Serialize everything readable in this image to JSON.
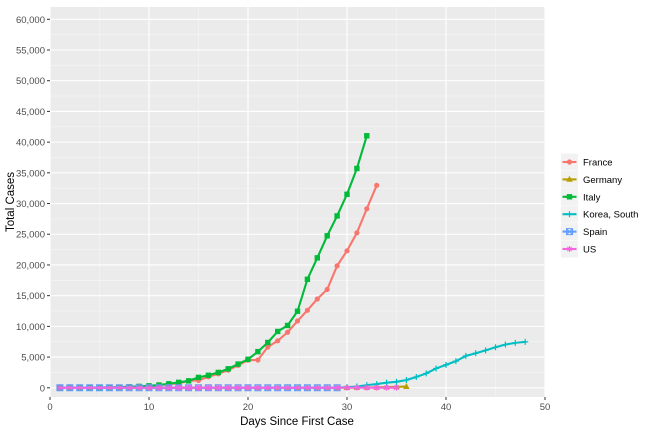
{
  "chart_data": {
    "type": "line",
    "xlabel": "Days Since First Case",
    "ylabel": "Total Cases",
    "xlim": [
      0,
      50
    ],
    "ylim": [
      -1500,
      62000
    ],
    "x_ticks": [
      0,
      10,
      20,
      30,
      40,
      50
    ],
    "y_ticks": [
      0,
      5000,
      10000,
      15000,
      20000,
      25000,
      30000,
      35000,
      40000,
      45000,
      50000,
      55000,
      60000
    ],
    "x_tick_labels": [
      "0",
      "10",
      "20",
      "30",
      "40",
      "50"
    ],
    "y_tick_labels": [
      "0",
      "5,000",
      "10,000",
      "15,000",
      "20,000",
      "25,000",
      "30,000",
      "35,000",
      "40,000",
      "45,000",
      "50,000",
      "55,000",
      "60,000"
    ],
    "grid": true,
    "legend_position": "right",
    "series": [
      {
        "name": "France",
        "color": "#F8766D",
        "marker": "circle",
        "x": [
          1,
          2,
          3,
          4,
          5,
          6,
          7,
          8,
          9,
          10,
          11,
          12,
          13,
          14,
          15,
          16,
          17,
          18,
          19,
          20,
          21,
          22,
          23,
          24,
          25,
          26,
          27,
          28,
          29,
          30,
          31,
          32,
          33
        ],
        "y": [
          12,
          12,
          18,
          38,
          57,
          100,
          130,
          191,
          212,
          285,
          423,
          613,
          716,
          1126,
          1209,
          1784,
          2281,
          2876,
          3661,
          4499,
          4523,
          6633,
          7652,
          9043,
          10871,
          12612,
          14459,
          16018,
          19856,
          22304,
          25233,
          29155,
          32964
        ]
      },
      {
        "name": "Germany",
        "color": "#B79F00",
        "marker": "triangle",
        "x": [
          1,
          2,
          3,
          4,
          5,
          6,
          7,
          8,
          9,
          10,
          11,
          12,
          13,
          14,
          15,
          16,
          17,
          18,
          19,
          20,
          21,
          22,
          23,
          24,
          25,
          26,
          27,
          28,
          29,
          30,
          31,
          32,
          33,
          34,
          35,
          36
        ],
        "y": [
          1,
          4,
          4,
          5,
          8,
          10,
          12,
          12,
          12,
          12,
          13,
          13,
          14,
          14,
          16,
          16,
          16,
          16,
          16,
          16,
          16,
          16,
          16,
          16,
          16,
          16,
          16,
          16,
          17,
          27,
          46,
          48,
          79,
          130,
          159,
          196
        ]
      },
      {
        "name": "Italy",
        "color": "#00BA38",
        "marker": "square",
        "x": [
          1,
          2,
          3,
          4,
          5,
          6,
          7,
          8,
          9,
          10,
          11,
          12,
          13,
          14,
          15,
          16,
          17,
          18,
          19,
          20,
          21,
          22,
          23,
          24,
          25,
          26,
          27,
          28,
          29,
          30,
          31,
          32
        ],
        "y": [
          2,
          2,
          3,
          3,
          3,
          20,
          62,
          155,
          229,
          322,
          453,
          655,
          888,
          1128,
          1694,
          2036,
          2502,
          3089,
          3858,
          4636,
          5883,
          7375,
          9172,
          10149,
          12462,
          17660,
          21157,
          24747,
          27980,
          31506,
          35713,
          41035
        ]
      },
      {
        "name": "Korea, South",
        "color": "#00BFC4",
        "marker": "plus",
        "x": [
          1,
          2,
          3,
          4,
          5,
          6,
          7,
          8,
          9,
          10,
          11,
          12,
          13,
          14,
          15,
          16,
          17,
          18,
          19,
          20,
          21,
          22,
          23,
          24,
          25,
          26,
          27,
          28,
          29,
          30,
          31,
          32,
          33,
          34,
          35,
          36,
          37,
          38,
          39,
          40,
          41,
          42,
          43,
          44,
          45,
          46,
          47,
          48
        ],
        "y": [
          1,
          1,
          2,
          2,
          3,
          4,
          4,
          4,
          4,
          11,
          12,
          15,
          15,
          16,
          19,
          23,
          24,
          24,
          25,
          27,
          28,
          28,
          28,
          28,
          28,
          29,
          30,
          31,
          31,
          104,
          204,
          433,
          602,
          833,
          977,
          1261,
          1766,
          2337,
          3150,
          3736,
          4335,
          5186,
          5621,
          6088,
          6593,
          7041,
          7314,
          7478
        ]
      },
      {
        "name": "Spain",
        "color": "#619CFF",
        "marker": "square-x",
        "x": [
          1,
          2,
          3,
          4,
          5,
          6,
          7,
          8,
          9,
          10,
          11,
          12,
          13,
          14,
          15,
          16,
          17,
          18,
          19,
          20,
          21,
          22,
          23,
          24,
          25,
          26,
          27,
          28,
          29
        ],
        "y": [
          1,
          1,
          1,
          1,
          1,
          1,
          1,
          1,
          1,
          1,
          2,
          2,
          2,
          2,
          2,
          2,
          2,
          2,
          2,
          2,
          2,
          2,
          2,
          2,
          2,
          2,
          2,
          2,
          2
        ]
      },
      {
        "name": "US",
        "color": "#F564E3",
        "marker": "asterisk",
        "x": [
          1,
          2,
          3,
          4,
          5,
          6,
          7,
          8,
          9,
          10,
          11,
          12,
          13,
          14,
          15,
          16,
          17,
          18,
          19,
          20,
          21,
          22,
          23,
          24,
          25,
          26,
          27,
          28,
          29,
          30,
          31,
          32,
          33,
          34,
          35
        ],
        "y": [
          1,
          1,
          2,
          2,
          5,
          5,
          5,
          5,
          5,
          6,
          7,
          8,
          11,
          11,
          11,
          12,
          12,
          12,
          12,
          12,
          13,
          13,
          14,
          14,
          14,
          14,
          14,
          14,
          14,
          14,
          16,
          16,
          16,
          16,
          16
        ]
      }
    ]
  }
}
